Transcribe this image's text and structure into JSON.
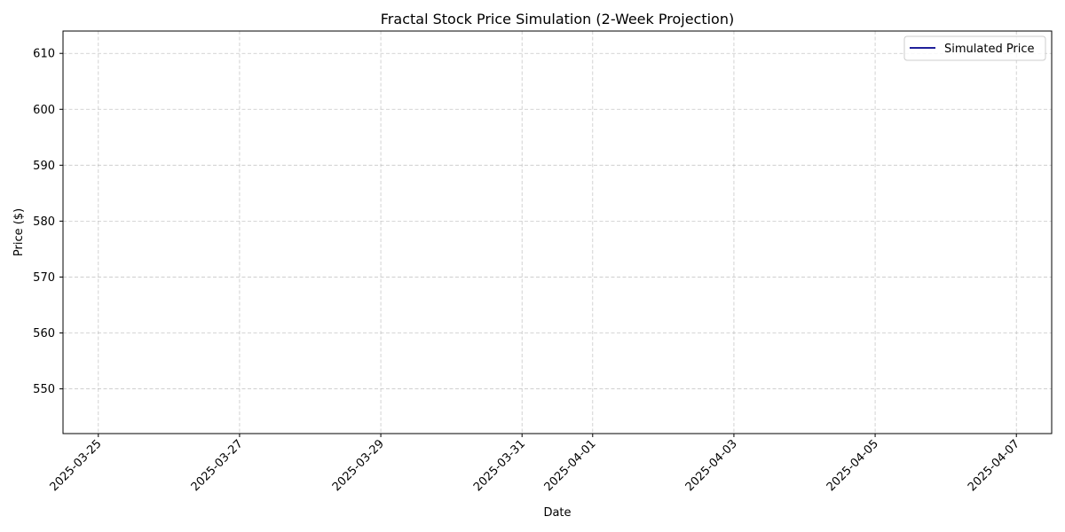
{
  "chart_data": {
    "type": "line",
    "title": "Fractal Stock Price Simulation (2-Week Projection)",
    "xlabel": "Date",
    "ylabel": "Price ($)",
    "x_ticks": [
      "2025-03-25",
      "2025-03-27",
      "2025-03-29",
      "2025-03-31",
      "2025-04-01",
      "2025-04-03",
      "2025-04-05",
      "2025-04-07"
    ],
    "y_ticks": [
      550,
      560,
      570,
      580,
      590,
      600,
      610
    ],
    "xlim": [
      "2025-03-24T12:00",
      "2025-04-07T12:00"
    ],
    "ylim": [
      542,
      614
    ],
    "grid": true,
    "grid_style": "dashed",
    "legend_position": "top-right",
    "series": [
      {
        "name": "Simulated Price",
        "color": "#00008b",
        "x": [],
        "y": []
      }
    ]
  }
}
